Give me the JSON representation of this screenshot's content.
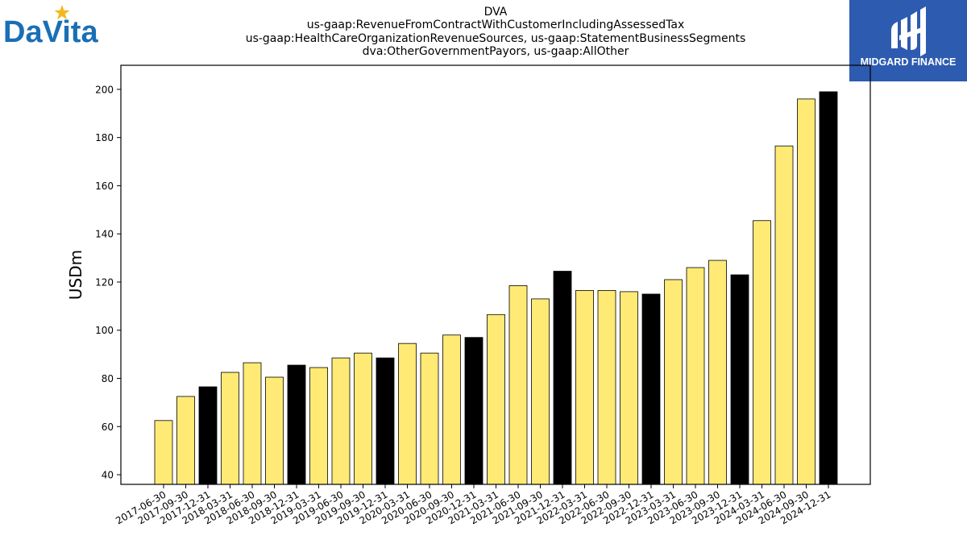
{
  "header": {
    "title_lines": [
      "DVA",
      "us-gaap:RevenueFromContractWithCustomerIncludingAssessedTax",
      "us-gaap:HealthCareOrganizationRevenueSources, us-gaap:StatementBusinessSegments",
      "dva:OtherGovernmentPayors, us-gaap:AllOther"
    ]
  },
  "logos": {
    "left_text": "DaVita",
    "right_text": "MIDGARD FINANCE",
    "left_color": "#1a6fb5",
    "star_color": "#f5b81c",
    "right_bg": "#2d5bb0"
  },
  "chart_data": {
    "type": "bar",
    "ylabel": "USDm",
    "xlabel": "",
    "ylim": [
      36,
      210
    ],
    "yticks": [
      40,
      60,
      80,
      100,
      120,
      140,
      160,
      180,
      200
    ],
    "colors": {
      "quarter": "#ffea75",
      "year_end": "#000000",
      "edge": "#000000"
    },
    "categories": [
      "2017-06-30",
      "2017-09-30",
      "2017-12-31",
      "2018-03-31",
      "2018-06-30",
      "2018-09-30",
      "2018-12-31",
      "2019-03-31",
      "2019-06-30",
      "2019-09-30",
      "2019-12-31",
      "2020-03-31",
      "2020-06-30",
      "2020-09-30",
      "2020-12-31",
      "2021-03-31",
      "2021-06-30",
      "2021-09-30",
      "2021-12-31",
      "2022-03-31",
      "2022-06-30",
      "2022-09-30",
      "2022-12-31",
      "2023-03-31",
      "2023-06-30",
      "2023-09-30",
      "2023-12-31",
      "2024-03-31",
      "2024-06-30",
      "2024-09-30",
      "2024-12-31"
    ],
    "values": [
      62.5,
      72.5,
      76.5,
      82.5,
      86.5,
      80.5,
      85.5,
      84.5,
      88.5,
      90.5,
      88.5,
      94.5,
      90.5,
      98.0,
      97.0,
      106.5,
      118.5,
      113.0,
      124.5,
      116.5,
      116.5,
      116.0,
      115.0,
      121.0,
      126.0,
      129.0,
      123.0,
      145.5,
      176.5,
      196.0,
      199.0
    ]
  }
}
